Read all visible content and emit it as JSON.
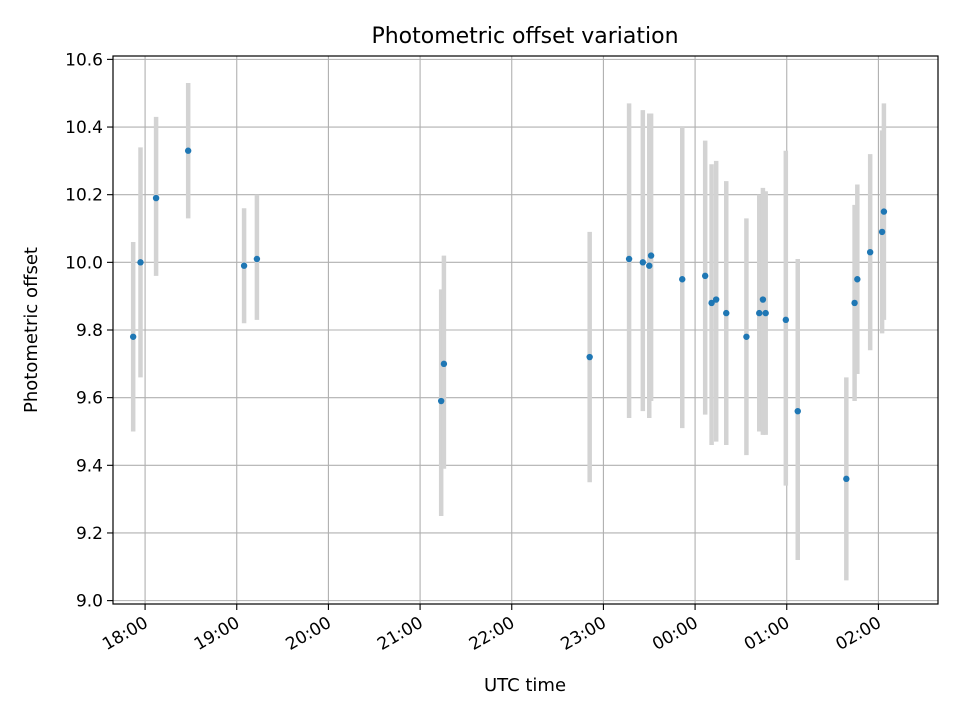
{
  "chart_data": {
    "type": "scatter",
    "title": "Photometric offset variation",
    "xlabel": "UTC time",
    "ylabel": "Photometric offset",
    "grid": true,
    "ylim": [
      8.99,
      10.61
    ],
    "yticks": [
      9.0,
      9.2,
      9.4,
      9.6,
      9.8,
      10.0,
      10.2,
      10.4,
      10.6
    ],
    "ytick_labels": [
      "9.0",
      "9.2",
      "9.4",
      "9.6",
      "9.8",
      "10.0",
      "10.2",
      "10.4",
      "10.6"
    ],
    "xlim_hours": [
      17.65,
      26.65
    ],
    "xticks_hours": [
      18,
      19,
      20,
      21,
      22,
      23,
      24,
      25,
      26
    ],
    "xtick_labels": [
      "18:00",
      "19:00",
      "20:00",
      "21:00",
      "22:00",
      "23:00",
      "00:00",
      "01:00",
      "02:00"
    ],
    "marker_color": "#1f77b4",
    "errorbar_color": "#d3d3d3",
    "points": [
      {
        "t": 17.87,
        "y": 9.78,
        "lo": 9.5,
        "hi": 10.06
      },
      {
        "t": 17.95,
        "y": 10.0,
        "lo": 9.66,
        "hi": 10.34
      },
      {
        "t": 18.12,
        "y": 10.19,
        "lo": 9.96,
        "hi": 10.43
      },
      {
        "t": 18.47,
        "y": 10.33,
        "lo": 10.13,
        "hi": 10.53
      },
      {
        "t": 19.08,
        "y": 9.99,
        "lo": 9.82,
        "hi": 10.16
      },
      {
        "t": 19.22,
        "y": 10.01,
        "lo": 9.83,
        "hi": 10.2
      },
      {
        "t": 21.23,
        "y": 9.59,
        "lo": 9.25,
        "hi": 9.92
      },
      {
        "t": 21.26,
        "y": 9.7,
        "lo": 9.39,
        "hi": 10.02
      },
      {
        "t": 22.85,
        "y": 9.72,
        "lo": 9.35,
        "hi": 10.09
      },
      {
        "t": 23.28,
        "y": 10.01,
        "lo": 9.54,
        "hi": 10.47
      },
      {
        "t": 23.43,
        "y": 10.0,
        "lo": 9.56,
        "hi": 10.45
      },
      {
        "t": 23.5,
        "y": 9.99,
        "lo": 9.54,
        "hi": 10.44
      },
      {
        "t": 23.52,
        "y": 10.02,
        "lo": 9.59,
        "hi": 10.44
      },
      {
        "t": 23.86,
        "y": 9.95,
        "lo": 9.51,
        "hi": 10.4
      },
      {
        "t": 24.11,
        "y": 9.96,
        "lo": 9.55,
        "hi": 10.36
      },
      {
        "t": 24.18,
        "y": 9.88,
        "lo": 9.46,
        "hi": 10.29
      },
      {
        "t": 24.23,
        "y": 9.89,
        "lo": 9.47,
        "hi": 10.3
      },
      {
        "t": 24.34,
        "y": 9.85,
        "lo": 9.46,
        "hi": 10.24
      },
      {
        "t": 24.56,
        "y": 9.78,
        "lo": 9.43,
        "hi": 10.13
      },
      {
        "t": 24.7,
        "y": 9.85,
        "lo": 9.5,
        "hi": 10.2
      },
      {
        "t": 24.74,
        "y": 9.89,
        "lo": 9.49,
        "hi": 10.22
      },
      {
        "t": 24.77,
        "y": 9.85,
        "lo": 9.49,
        "hi": 10.21
      },
      {
        "t": 24.99,
        "y": 9.83,
        "lo": 9.34,
        "hi": 10.33
      },
      {
        "t": 25.12,
        "y": 9.56,
        "lo": 9.12,
        "hi": 10.01
      },
      {
        "t": 25.65,
        "y": 9.36,
        "lo": 9.06,
        "hi": 9.66
      },
      {
        "t": 25.74,
        "y": 9.88,
        "lo": 9.59,
        "hi": 10.17
      },
      {
        "t": 25.77,
        "y": 9.95,
        "lo": 9.67,
        "hi": 10.23
      },
      {
        "t": 25.91,
        "y": 10.03,
        "lo": 9.74,
        "hi": 10.32
      },
      {
        "t": 26.04,
        "y": 10.09,
        "lo": 9.79,
        "hi": 10.39
      },
      {
        "t": 26.06,
        "y": 10.15,
        "lo": 9.83,
        "hi": 10.47
      }
    ]
  }
}
